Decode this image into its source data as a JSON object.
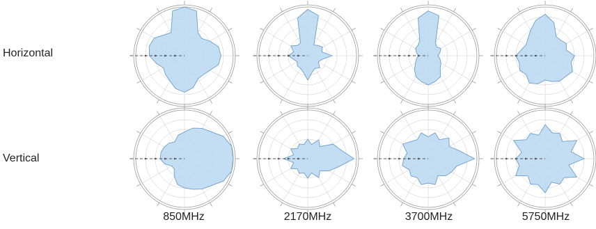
{
  "chart_data": {
    "type": "polar",
    "title": "",
    "row_labels": [
      "Horizontal",
      "Vertical"
    ],
    "column_labels": [
      "850MHz",
      "2170MHz",
      "3700MHz",
      "5750MHz"
    ],
    "angle_step_deg": 15,
    "angle_zero": "up",
    "angle_direction": "clockwise",
    "r_range": [
      0,
      1
    ],
    "rings": 5,
    "grid": true,
    "fill_color": "#b9d7f1",
    "line_color": "#6c9ecb",
    "grid_color": "#c8c8c8",
    "patterns": [
      [
        [
          1.0,
          0.95,
          0.55,
          0.5,
          0.6,
          0.72,
          0.75,
          0.72,
          0.6,
          0.55,
          0.55,
          0.68,
          0.75,
          0.7,
          0.6,
          0.55,
          0.5,
          0.6,
          0.72,
          0.75,
          0.72,
          0.6,
          0.55,
          0.95
        ],
        [
          0.95,
          0.85,
          0.25,
          0.3,
          0.35,
          0.3,
          0.5,
          0.3,
          0.25,
          0.35,
          0.3,
          0.35,
          0.5,
          0.35,
          0.3,
          0.3,
          0.25,
          0.3,
          0.4,
          0.3,
          0.4,
          0.3,
          0.3,
          0.8
        ],
        [
          0.92,
          0.85,
          0.3,
          0.25,
          0.3,
          0.25,
          0.2,
          0.25,
          0.3,
          0.35,
          0.5,
          0.55,
          0.6,
          0.55,
          0.5,
          0.4,
          0.3,
          0.25,
          0.2,
          0.25,
          0.3,
          0.3,
          0.35,
          0.8
        ],
        [
          0.85,
          0.7,
          0.45,
          0.45,
          0.5,
          0.45,
          0.6,
          0.55,
          0.65,
          0.6,
          0.6,
          0.55,
          0.5,
          0.6,
          0.65,
          0.55,
          0.6,
          0.55,
          0.6,
          0.5,
          0.45,
          0.5,
          0.6,
          0.75
        ]
      ],
      [
        [
          0.55,
          0.65,
          0.72,
          0.78,
          0.92,
          1.0,
          1.0,
          1.0,
          0.92,
          0.78,
          0.72,
          0.65,
          0.6,
          0.55,
          0.42,
          0.3,
          0.3,
          0.42,
          0.5,
          0.5,
          0.48,
          0.45,
          0.4,
          0.5
        ],
        [
          0.4,
          0.3,
          0.45,
          0.35,
          0.6,
          0.7,
          0.95,
          0.65,
          0.5,
          0.35,
          0.45,
          0.3,
          0.4,
          0.3,
          0.35,
          0.3,
          0.4,
          0.3,
          0.5,
          0.3,
          0.4,
          0.3,
          0.35,
          0.3
        ],
        [
          0.45,
          0.55,
          0.45,
          0.6,
          0.5,
          0.65,
          0.95,
          0.6,
          0.55,
          0.5,
          0.4,
          0.55,
          0.5,
          0.55,
          0.45,
          0.5,
          0.45,
          0.55,
          0.5,
          0.45,
          0.6,
          0.5,
          0.45,
          0.55
        ],
        [
          0.7,
          0.55,
          0.6,
          0.5,
          0.75,
          0.55,
          0.8,
          0.5,
          0.75,
          0.55,
          0.6,
          0.5,
          0.7,
          0.55,
          0.6,
          0.5,
          0.7,
          0.55,
          0.6,
          0.5,
          0.75,
          0.55,
          0.6,
          0.5
        ]
      ]
    ]
  }
}
